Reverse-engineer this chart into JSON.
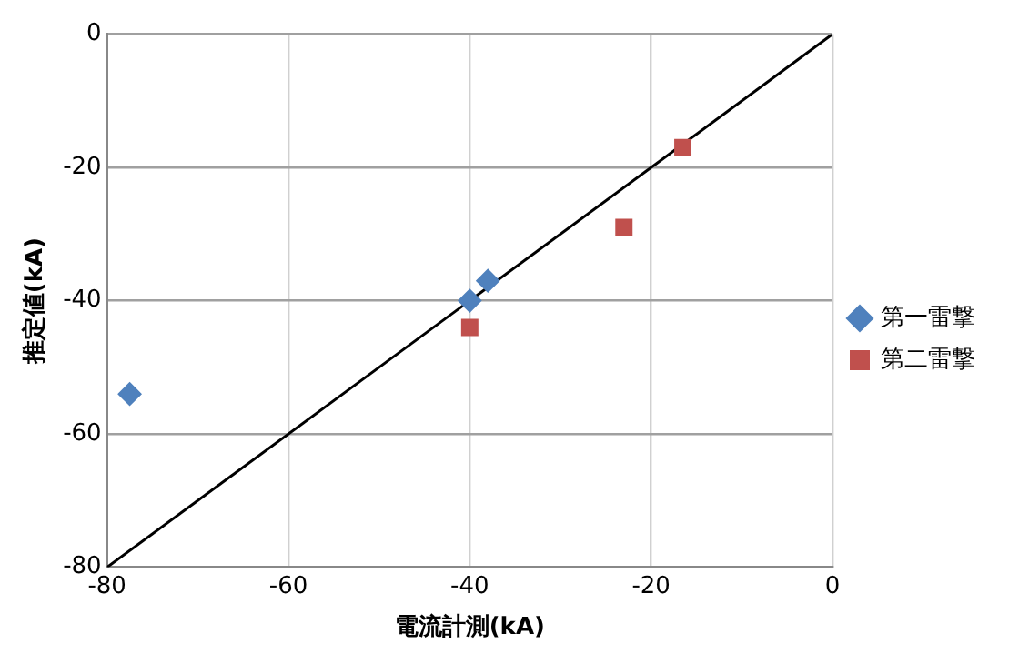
{
  "chart_data": {
    "type": "scatter",
    "xlabel": "電流計測(kA)",
    "ylabel": "推定値(kA)",
    "xlim": [
      -80,
      0
    ],
    "xticks": [
      -80,
      -60,
      -40,
      -20,
      0
    ],
    "ylim": [
      -80,
      0
    ],
    "yticks": [
      -80,
      -60,
      -40,
      -20,
      0
    ],
    "grid": true,
    "legend": "right",
    "series": [
      {
        "name": "第一雷撃",
        "color": "#4f81bd",
        "marker": "diamond",
        "x": [
          -77.5,
          -40,
          -38
        ],
        "values": [
          -54,
          -40,
          -37
        ]
      },
      {
        "name": "第二雷撃",
        "color": "#c0504d",
        "marker": "square",
        "x": [
          -40,
          -23,
          -16.5
        ],
        "values": [
          -44,
          -29,
          -17
        ]
      },
      {
        "type": "line",
        "color": "#000000",
        "marker": "none",
        "x": [
          -80,
          0
        ],
        "values": [
          -80,
          0
        ]
      }
    ]
  }
}
